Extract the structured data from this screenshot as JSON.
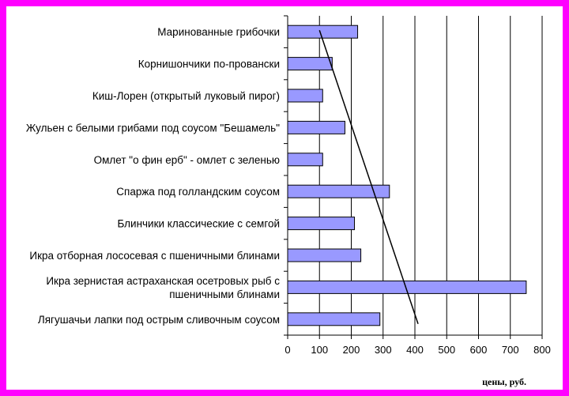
{
  "chart_data": {
    "type": "bar",
    "orientation": "horizontal",
    "categories": [
      "Маринованные грибочки",
      "Корнишончики по-провански",
      "Киш-Лорен (открытый луковый пирог)",
      "Жульен с белыми грибами под соусом \"Бешамель\"",
      "Омлет \"о фин ерб\" - омлет с зеленью",
      "Спаржа под голландским соусом",
      "Блинчики классические с семгой",
      "Икра отборная лососевая с пшеничными блинами",
      "Икра зернистая астраханская осетровых рыб с пшеничными блинами",
      "Лягушачьи лапки под острым сливочным соусом"
    ],
    "category_lines": [
      [
        "Маринованные грибочки"
      ],
      [
        "Корнишончики по-провански"
      ],
      [
        "Киш-Лорен (открытый луковый пирог)"
      ],
      [
        "Жульен с белыми грибами под соусом \"Бешамель\""
      ],
      [
        "Омлет \"о фин ерб\" - омлет с зеленью"
      ],
      [
        "Спаржа под голландским соусом"
      ],
      [
        "Блинчики классические с семгой"
      ],
      [
        "Икра отборная лососевая с пшеничными блинами"
      ],
      [
        "Икра зернистая астраханская осетровых рыб с",
        "пшеничными блинами"
      ],
      [
        "Лягушачьи лапки под острым сливочным соусом"
      ]
    ],
    "values": [
      220,
      140,
      110,
      180,
      110,
      320,
      210,
      230,
      750,
      290
    ],
    "trendline": {
      "start": [
        100,
        "Маринованные грибочки"
      ],
      "end": [
        410,
        "Лягушачьи лапки под острым сливочным соусом"
      ]
    },
    "xlim": [
      0,
      800
    ],
    "xticks": [
      0,
      100,
      200,
      300,
      400,
      500,
      600,
      700,
      800
    ],
    "xlabel": "цены, руб.",
    "grid": "vertical",
    "legend": "none",
    "colors": {
      "bar_fill": "#9999ff",
      "bar_stroke": "#000000",
      "grid": "#000000",
      "frame": "#ff00ff",
      "trendline": "#000000"
    }
  }
}
